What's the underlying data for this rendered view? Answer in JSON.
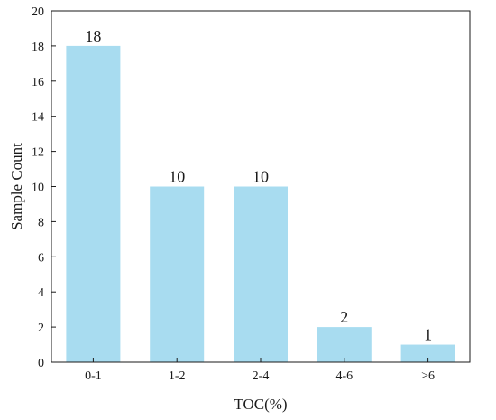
{
  "chart_data": {
    "type": "bar",
    "title": "",
    "xlabel": "TOC(%)",
    "ylabel": "Sample Count",
    "categories": [
      "0-1",
      "1-2",
      "2-4",
      "4-6",
      ">6"
    ],
    "values": [
      18,
      10,
      10,
      2,
      1
    ],
    "data_labels": [
      "18",
      "10",
      "10",
      "2",
      "1"
    ],
    "ylim": [
      0,
      20
    ],
    "yticks": [
      0,
      2,
      4,
      6,
      8,
      10,
      12,
      14,
      16,
      18,
      20
    ],
    "grid": false,
    "legend": "none",
    "bar_color": "#a8dcf0"
  }
}
